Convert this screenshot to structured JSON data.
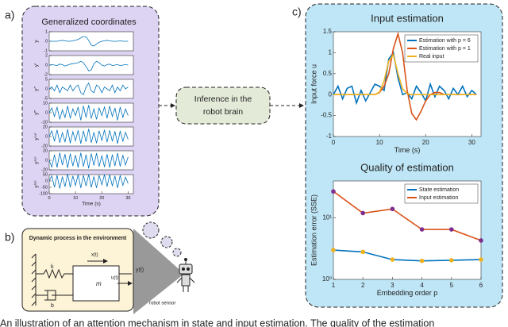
{
  "panels": {
    "a": "a)",
    "b": "b)",
    "c": "c)"
  },
  "panel_a": {
    "title": "Generalized coordinates"
  },
  "inference_box": [
    "Inference in the",
    "robot brain"
  ],
  "panel_b": {
    "title": "Dynamic process in the environment",
    "k": "k",
    "b": "b",
    "m": "m",
    "x": "x(t)",
    "u": "u(t)",
    "y": "y(t)",
    "sensor": "robot sensor"
  },
  "caption": "An illustration of an attention mechanism in state and input estimation. The quality of the estimation",
  "chart_data": [
    {
      "type": "line",
      "ylabel": "y",
      "x": [
        0,
        1,
        2,
        3,
        4,
        5,
        6,
        7,
        8,
        9,
        10,
        11,
        12,
        13,
        14,
        15,
        16,
        17,
        18,
        19,
        20,
        21,
        22,
        23,
        24,
        25,
        26,
        27,
        28,
        29,
        30
      ],
      "xlim": [
        0,
        32
      ],
      "ylim": [
        -1,
        1
      ],
      "yticks": [
        -1,
        0,
        1
      ],
      "series": [
        {
          "color": "#0072bd",
          "values": [
            0,
            0,
            0,
            0,
            0.05,
            0.1,
            0.05,
            0,
            0,
            0.05,
            0.1,
            0.2,
            0.35,
            0.5,
            0.45,
            0.1,
            -0.4,
            -0.5,
            -0.3,
            -0.1,
            0,
            0.05,
            0.1,
            0.05,
            0,
            0,
            0,
            0.05,
            0,
            0,
            0
          ]
        }
      ]
    },
    {
      "type": "line",
      "ylabel": "y′",
      "x": [
        0,
        1,
        2,
        3,
        4,
        5,
        6,
        7,
        8,
        9,
        10,
        11,
        12,
        13,
        14,
        15,
        16,
        17,
        18,
        19,
        20,
        21,
        22,
        23,
        24,
        25,
        26,
        27,
        28,
        29,
        30
      ],
      "xlim": [
        0,
        32
      ],
      "ylim": [
        -2,
        2
      ],
      "yticks": [
        -2,
        0,
        2
      ],
      "series": [
        {
          "color": "#0072bd",
          "values": [
            0,
            0.1,
            0,
            -0.1,
            0.2,
            0.1,
            -0.2,
            0,
            0.2,
            0.3,
            0.4,
            0.5,
            0.8,
            0.5,
            -0.3,
            -1.2,
            -1.0,
            0.3,
            0.8,
            0.5,
            0,
            -0.2,
            0.1,
            0.2,
            -0.1,
            0,
            0.1,
            -0.1,
            0,
            0.1,
            0
          ]
        }
      ]
    },
    {
      "type": "line",
      "ylabel": "y″",
      "x": [
        0,
        1,
        2,
        3,
        4,
        5,
        6,
        7,
        8,
        9,
        10,
        11,
        12,
        13,
        14,
        15,
        16,
        17,
        18,
        19,
        20,
        21,
        22,
        23,
        24,
        25,
        26,
        27,
        28,
        29,
        30
      ],
      "xlim": [
        0,
        32
      ],
      "ylim": [
        -5,
        5
      ],
      "yticks": [
        -5,
        0,
        5
      ],
      "series": [
        {
          "color": "#0072bd",
          "values": [
            0,
            1,
            -1,
            2,
            -2,
            1,
            0,
            -1,
            2,
            -1,
            1,
            2,
            -2,
            -3,
            1,
            3,
            -1,
            -2,
            2,
            1,
            -2,
            1,
            0,
            -1,
            2,
            -2,
            1,
            -1,
            2,
            0,
            1
          ]
        }
      ]
    },
    {
      "type": "line",
      "ylabel": "y‴",
      "x": [
        0,
        1,
        2,
        3,
        4,
        5,
        6,
        7,
        8,
        9,
        10,
        11,
        12,
        13,
        14,
        15,
        16,
        17,
        18,
        19,
        20,
        21,
        22,
        23,
        24,
        25,
        26,
        27,
        28,
        29,
        30
      ],
      "xlim": [
        0,
        32
      ],
      "ylim": [
        -10,
        10
      ],
      "yticks": [
        -10,
        0,
        10
      ],
      "series": [
        {
          "color": "#0072bd",
          "values": [
            0,
            5,
            -4,
            6,
            -7,
            3,
            -5,
            7,
            -6,
            4,
            -3,
            6,
            -8,
            7,
            -5,
            8,
            -6,
            4,
            -7,
            5,
            -3,
            6,
            -6,
            7,
            -4,
            5,
            -8,
            6,
            -5,
            4,
            -3
          ]
        }
      ]
    },
    {
      "type": "line",
      "ylabel": "y⁽⁴⁾",
      "x": [
        0,
        1,
        2,
        3,
        4,
        5,
        6,
        7,
        8,
        9,
        10,
        11,
        12,
        13,
        14,
        15,
        16,
        17,
        18,
        19,
        20,
        21,
        22,
        23,
        24,
        25,
        26,
        27,
        28,
        29,
        30
      ],
      "xlim": [
        0,
        32
      ],
      "ylim": [
        -20,
        20
      ],
      "yticks": [
        -20,
        0,
        20
      ],
      "series": [
        {
          "color": "#0072bd",
          "values": [
            0,
            12,
            -10,
            14,
            -13,
            8,
            -12,
            15,
            -14,
            10,
            -9,
            13,
            -15,
            12,
            -11,
            16,
            -13,
            9,
            -14,
            12,
            -8,
            14,
            -12,
            13,
            -10,
            11,
            -15,
            12,
            -10,
            9,
            -6
          ]
        }
      ]
    },
    {
      "type": "line",
      "ylabel": "y⁽⁵⁾",
      "x": [
        0,
        1,
        2,
        3,
        4,
        5,
        6,
        7,
        8,
        9,
        10,
        11,
        12,
        13,
        14,
        15,
        16,
        17,
        18,
        19,
        20,
        21,
        22,
        23,
        24,
        25,
        26,
        27,
        28,
        29,
        30
      ],
      "xlim": [
        0,
        32
      ],
      "ylim": [
        -20,
        20
      ],
      "yticks": [
        -20,
        0,
        20
      ],
      "series": [
        {
          "color": "#0072bd",
          "values": [
            0,
            -14,
            12,
            -15,
            16,
            -10,
            13,
            -16,
            14,
            -12,
            11,
            -15,
            16,
            -13,
            12,
            -17,
            14,
            -11,
            15,
            -13,
            10,
            -14,
            13,
            -15,
            12,
            -12,
            15,
            -13,
            11,
            -10,
            7
          ]
        }
      ]
    },
    {
      "type": "line",
      "ylabel": "y⁽⁶⁾",
      "xlabel": "Time (s)",
      "x": [
        0,
        1,
        2,
        3,
        4,
        5,
        6,
        7,
        8,
        9,
        10,
        11,
        12,
        13,
        14,
        15,
        16,
        17,
        18,
        19,
        20,
        21,
        22,
        23,
        24,
        25,
        26,
        27,
        28,
        29,
        30
      ],
      "xlim": [
        0,
        32
      ],
      "xticks": [
        0,
        10,
        20,
        30
      ],
      "ylim": [
        -100,
        50
      ],
      "yticks": [
        -100,
        -50,
        0,
        50
      ],
      "series": [
        {
          "color": "#0072bd",
          "values": [
            0,
            40,
            -50,
            45,
            -60,
            35,
            -45,
            55,
            -50,
            40,
            -35,
            50,
            -55,
            45,
            -40,
            50,
            -50,
            35,
            -55,
            45,
            -30,
            50,
            -45,
            50,
            -40,
            40,
            -55,
            45,
            -35,
            30,
            -20
          ]
        }
      ]
    },
    {
      "type": "line",
      "title": "Input estimation",
      "xlabel": "Time (s)",
      "ylabel": "Input force u",
      "legend": "upper right",
      "x": [
        0,
        1,
        2,
        3,
        4,
        5,
        6,
        7,
        8,
        9,
        10,
        11,
        12,
        13,
        14,
        15,
        16,
        17,
        18,
        19,
        20,
        21,
        22,
        23,
        24,
        25,
        26,
        27,
        28,
        29,
        30,
        31
      ],
      "xlim": [
        0,
        32
      ],
      "xticks": [
        0,
        10,
        20,
        30
      ],
      "ylim": [
        -1,
        1.5
      ],
      "yticks": [
        -1,
        -0.5,
        0,
        0.5,
        1,
        1.5
      ],
      "series": [
        {
          "name": "Estimation with p = 6",
          "color": "#0072bd",
          "values": [
            0,
            0.2,
            -0.1,
            0.15,
            0.2,
            -0.2,
            0.1,
            -0.15,
            0.05,
            0.25,
            0.2,
            0.1,
            0.85,
            1.0,
            0.4,
            0,
            0.05,
            -0.1,
            0.2,
            0.05,
            -0.15,
            0.25,
            -0.05,
            0.2,
            0.1,
            -0.1,
            0.15,
            0,
            0.2,
            -0.05,
            0.1,
            0
          ]
        },
        {
          "name": "Estimation with p = 1",
          "color": "#d95319",
          "values": [
            0,
            0,
            0,
            0,
            0,
            0,
            0,
            0,
            0,
            0,
            0.05,
            0.2,
            0.5,
            1.1,
            1.45,
            1.0,
            0.1,
            -0.45,
            -0.6,
            -0.4,
            -0.15,
            0,
            0.05,
            0.05,
            0,
            0,
            0,
            0,
            0,
            0,
            0,
            0
          ]
        },
        {
          "name": "Real input",
          "color": "#edb120",
          "values": [
            0,
            0,
            0,
            0,
            0,
            0,
            0,
            0,
            0,
            0,
            0.06,
            0.33,
            0.8,
            0.95,
            0.5,
            0.14,
            0.02,
            0,
            0,
            0,
            0,
            0,
            0,
            0,
            0,
            0,
            0,
            0,
            0,
            0,
            0,
            0
          ]
        }
      ]
    },
    {
      "type": "line",
      "title": "Quality of estimation",
      "xlabel": "Embedding order p",
      "ylabel": "Estimation error (SSE)",
      "legend": "upper right",
      "log_y": true,
      "x": [
        1,
        2,
        3,
        4,
        5,
        6
      ],
      "xlim": [
        1,
        6
      ],
      "xticks": [
        1,
        2,
        3,
        4,
        5,
        6
      ],
      "ylim": [
        1,
        40
      ],
      "yticks": [
        {
          "value": 1,
          "label": "10⁰"
        },
        {
          "value": 10,
          "label": "10¹"
        }
      ],
      "series": [
        {
          "name": "State estimation",
          "color": "#0072bd",
          "marker_color": "#edb120",
          "values": [
            3.0,
            2.8,
            2.1,
            2.0,
            2.05,
            2.1
          ]
        },
        {
          "name": "Input estimation",
          "color": "#d95319",
          "marker_color": "#7e2f8e",
          "values": [
            27,
            12,
            14,
            6.5,
            6.5,
            4.3
          ]
        }
      ]
    }
  ]
}
